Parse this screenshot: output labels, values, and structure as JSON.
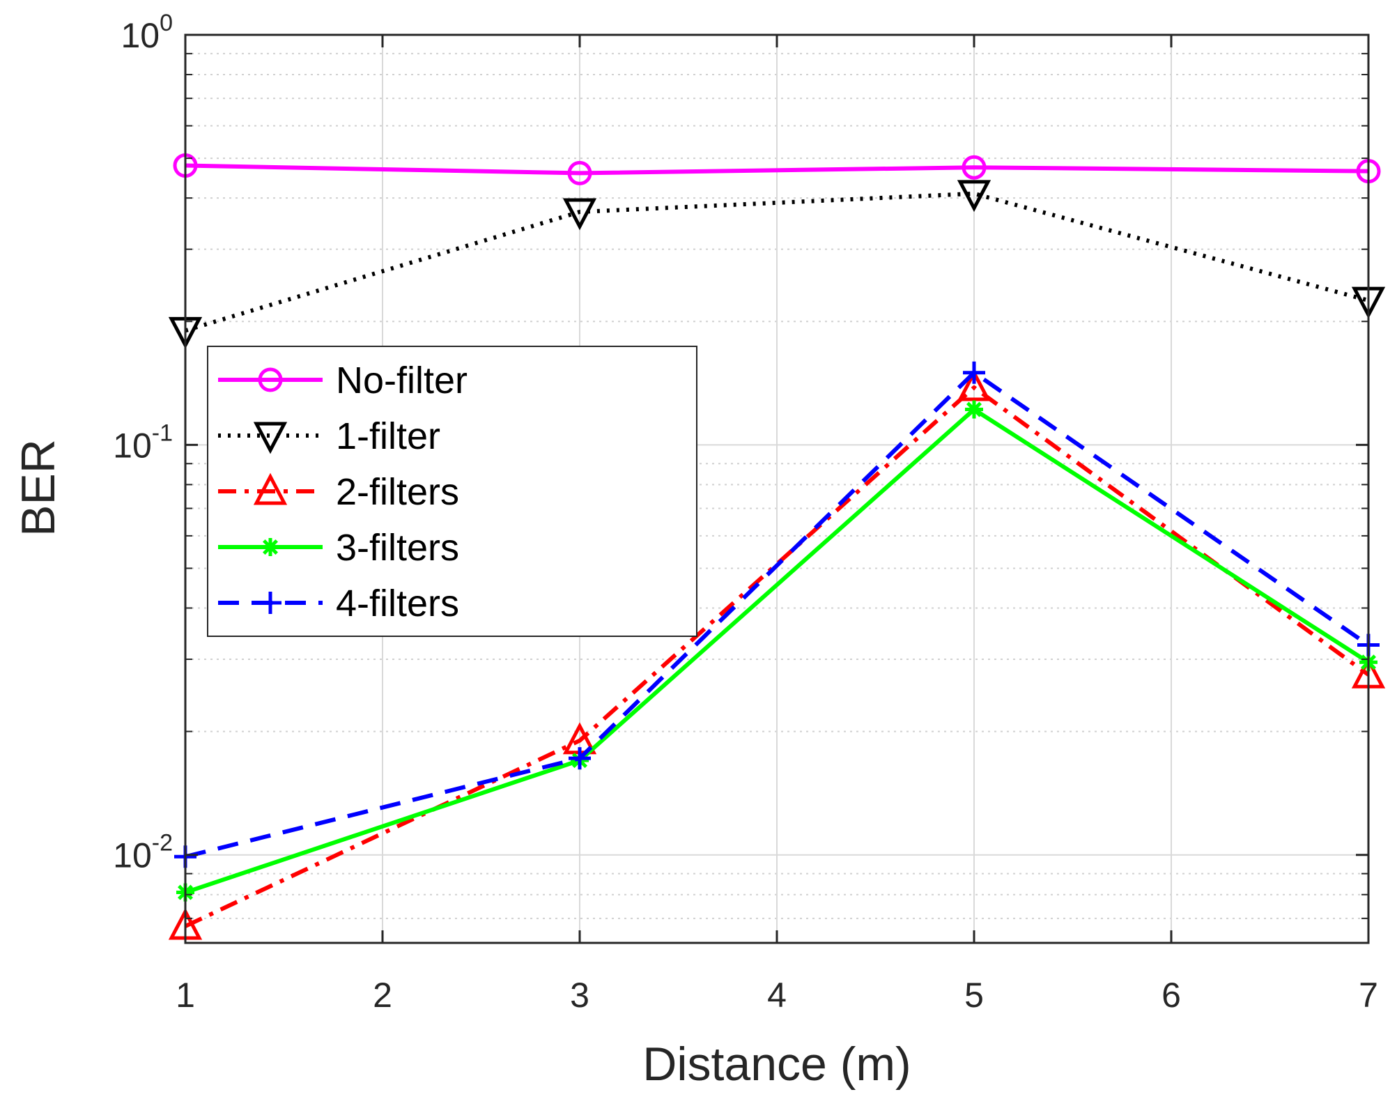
{
  "chart_data": {
    "type": "line",
    "title": "",
    "xlabel": "Distance (m)",
    "ylabel": "BER",
    "xlim": [
      1,
      7
    ],
    "ylim": [
      0.0061,
      1
    ],
    "yscale": "log",
    "grid": true,
    "legend_position": "left-middle",
    "x_ticks": [
      {
        "value": 1,
        "label": "1"
      },
      {
        "value": 2,
        "label": "2"
      },
      {
        "value": 3,
        "label": "3"
      },
      {
        "value": 4,
        "label": "4"
      },
      {
        "value": 5,
        "label": "5"
      },
      {
        "value": 6,
        "label": "6"
      },
      {
        "value": 7,
        "label": "7"
      }
    ],
    "y_ticks": [
      {
        "value": 0.01,
        "base": "10",
        "exp": "-2"
      },
      {
        "value": 0.1,
        "base": "10",
        "exp": "-1"
      },
      {
        "value": 1,
        "base": "10",
        "exp": "0"
      }
    ],
    "x": [
      1,
      3,
      5,
      7
    ],
    "series": [
      {
        "name": "No-filter",
        "values": [
          0.48,
          0.46,
          0.475,
          0.465
        ],
        "color": "#ff00ff",
        "marker": "circle",
        "dash": "solid"
      },
      {
        "name": "1-filter",
        "values": [
          0.19,
          0.37,
          0.41,
          0.225
        ],
        "color": "#000000",
        "marker": "triangle-down",
        "dash": "dotted"
      },
      {
        "name": "2-filters",
        "values": [
          0.0067,
          0.019,
          0.138,
          0.0275
        ],
        "color": "#ff0000",
        "marker": "triangle-up",
        "dash": "dashdot"
      },
      {
        "name": "3-filters",
        "values": [
          0.0081,
          0.017,
          0.122,
          0.0295
        ],
        "color": "#00ff00",
        "marker": "asterisk",
        "dash": "solid"
      },
      {
        "name": "4-filters",
        "values": [
          0.0099,
          0.0172,
          0.15,
          0.0325
        ],
        "color": "#0000ff",
        "marker": "plus",
        "dash": "dashed"
      }
    ]
  }
}
